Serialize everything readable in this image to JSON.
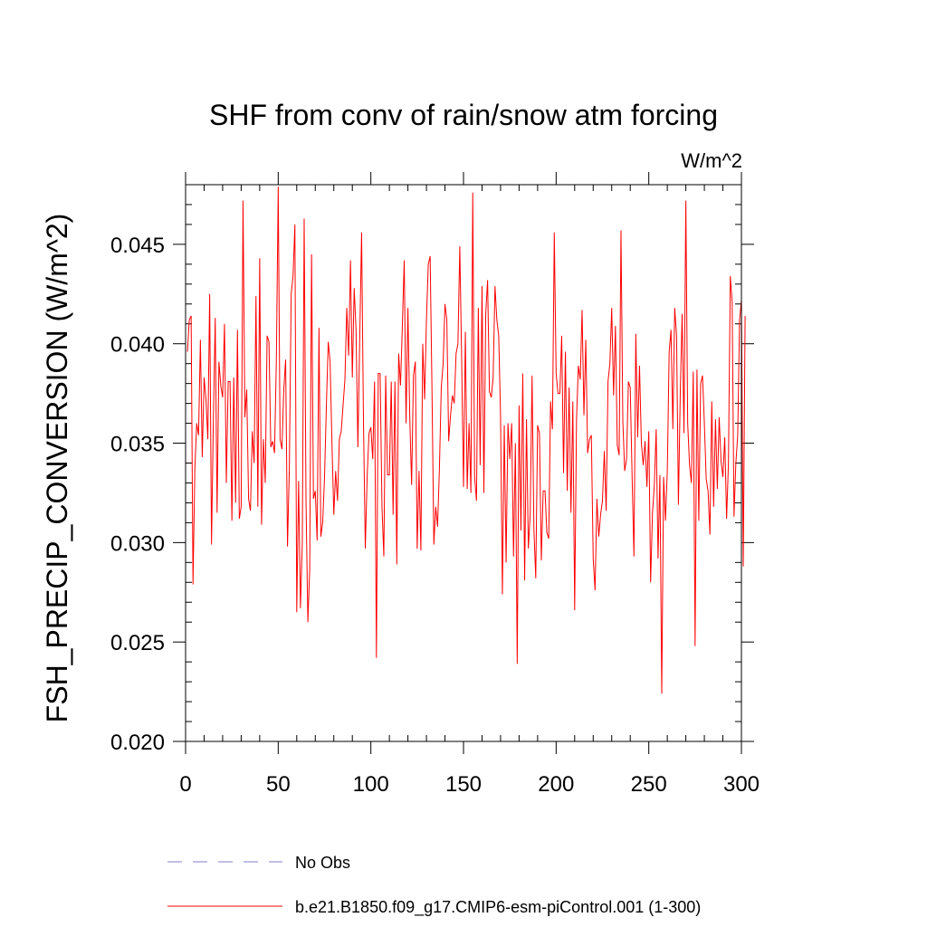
{
  "chart_data": {
    "type": "line",
    "title": "SHF from conv of rain/snow atm forcing",
    "units_label": "W/m^2",
    "ylabel": "FSH_PRECIP_CONVERSION  (W/m^2)",
    "xlabel": "",
    "xlim": [
      0,
      300
    ],
    "ylim": [
      0.02,
      0.048
    ],
    "x_ticks": [
      0,
      50,
      100,
      150,
      200,
      250,
      300
    ],
    "x_tick_labels": [
      "0",
      "50",
      "100",
      "150",
      "200",
      "250",
      "300"
    ],
    "y_ticks": [
      0.02,
      0.025,
      0.03,
      0.035,
      0.04,
      0.045
    ],
    "y_tick_labels": [
      "0.020",
      "0.025",
      "0.030",
      "0.035",
      "0.040",
      "0.045"
    ],
    "grid": false,
    "legend_placement": "bottom",
    "series": [
      {
        "name": "b.e21.B1850.f09_g17.CMIP6-esm-piControl.001 (1-300)",
        "color": "#ff0000",
        "x_start": 1,
        "x_step": 1,
        "values": [
          0.0396,
          0.0412,
          0.0414,
          0.0279,
          0.0337,
          0.036,
          0.0354,
          0.0402,
          0.0343,
          0.0383,
          0.0372,
          0.0352,
          0.0425,
          0.0299,
          0.0362,
          0.0413,
          0.0315,
          0.0391,
          0.0379,
          0.0373,
          0.041,
          0.033,
          0.0381,
          0.0381,
          0.0311,
          0.0383,
          0.032,
          0.0407,
          0.0312,
          0.0318,
          0.0472,
          0.0363,
          0.0377,
          0.0322,
          0.0316,
          0.0356,
          0.034,
          0.0424,
          0.0318,
          0.0443,
          0.0309,
          0.0352,
          0.033,
          0.0404,
          0.0401,
          0.0348,
          0.0351,
          0.0345,
          0.0392,
          0.0479,
          0.0352,
          0.0347,
          0.0377,
          0.0392,
          0.0298,
          0.0337,
          0.0425,
          0.0434,
          0.046,
          0.0265,
          0.0331,
          0.0267,
          0.03,
          0.0463,
          0.0321,
          0.026,
          0.0287,
          0.0445,
          0.0322,
          0.0326,
          0.0301,
          0.0408,
          0.0303,
          0.031,
          0.0333,
          0.0369,
          0.0401,
          0.0391,
          0.035,
          0.0314,
          0.0336,
          0.0321,
          0.0352,
          0.0356,
          0.0369,
          0.0382,
          0.0418,
          0.0394,
          0.0442,
          0.0383,
          0.0428,
          0.0407,
          0.0348,
          0.0403,
          0.0456,
          0.0362,
          0.0297,
          0.0333,
          0.0355,
          0.0358,
          0.0342,
          0.0381,
          0.0242,
          0.0385,
          0.0385,
          0.0318,
          0.0293,
          0.0384,
          0.0334,
          0.0334,
          0.0381,
          0.0314,
          0.0381,
          0.0289,
          0.0395,
          0.0379,
          0.0409,
          0.0442,
          0.036,
          0.0418,
          0.0363,
          0.0329,
          0.0384,
          0.0391,
          0.0297,
          0.0336,
          0.0296,
          0.04,
          0.0372,
          0.0412,
          0.044,
          0.0444,
          0.0376,
          0.0299,
          0.0318,
          0.0308,
          0.0337,
          0.0378,
          0.039,
          0.042,
          0.0412,
          0.0351,
          0.0364,
          0.0374,
          0.037,
          0.0395,
          0.04,
          0.0449,
          0.0392,
          0.0328,
          0.0406,
          0.0327,
          0.036,
          0.0325,
          0.0476,
          0.0333,
          0.0321,
          0.0418,
          0.0339,
          0.0429,
          0.0325,
          0.0415,
          0.0432,
          0.0376,
          0.0373,
          0.0383,
          0.0429,
          0.0412,
          0.0404,
          0.0364,
          0.0274,
          0.0359,
          0.029,
          0.036,
          0.0342,
          0.036,
          0.0293,
          0.035,
          0.0239,
          0.0369,
          0.0306,
          0.0385,
          0.0281,
          0.0362,
          0.0297,
          0.0314,
          0.0384,
          0.0307,
          0.0282,
          0.0359,
          0.0355,
          0.0291,
          0.0326,
          0.0326,
          0.0305,
          0.0302,
          0.0371,
          0.0357,
          0.0456,
          0.0385,
          0.0375,
          0.0375,
          0.0404,
          0.0335,
          0.0396,
          0.0326,
          0.0378,
          0.0315,
          0.0371,
          0.0266,
          0.0362,
          0.0389,
          0.0382,
          0.0417,
          0.0364,
          0.0402,
          0.0345,
          0.0352,
          0.0354,
          0.0292,
          0.0276,
          0.0322,
          0.0303,
          0.0314,
          0.0321,
          0.0346,
          0.0316,
          0.0381,
          0.039,
          0.0418,
          0.0374,
          0.0409,
          0.0349,
          0.0344,
          0.0457,
          0.0361,
          0.0336,
          0.0342,
          0.0381,
          0.0378,
          0.0333,
          0.0293,
          0.0405,
          0.0353,
          0.0389,
          0.035,
          0.0339,
          0.0351,
          0.0328,
          0.0356,
          0.028,
          0.0315,
          0.0329,
          0.0357,
          0.0292,
          0.0334,
          0.0224,
          0.0333,
          0.0311,
          0.0336,
          0.0396,
          0.0407,
          0.0357,
          0.0418,
          0.0404,
          0.0319,
          0.0375,
          0.0415,
          0.0355,
          0.0472,
          0.036,
          0.0339,
          0.033,
          0.0386,
          0.0248,
          0.0387,
          0.0311,
          0.038,
          0.0384,
          0.036,
          0.0332,
          0.0326,
          0.0304,
          0.0371,
          0.0318,
          0.0362,
          0.0327,
          0.0363,
          0.0341,
          0.0333,
          0.0353,
          0.0312,
          0.034,
          0.0434,
          0.0421,
          0.0313,
          0.034,
          0.0354,
          0.0412,
          0.0422,
          0.0288,
          0.0414
        ]
      }
    ],
    "legend": [
      {
        "label": "No Obs",
        "color": "#7f7fcf",
        "dash": true
      },
      {
        "label": "b.e21.B1850.f09_g17.CMIP6-esm-piControl.001 (1-300)",
        "color": "#ff0000",
        "dash": false
      }
    ]
  }
}
